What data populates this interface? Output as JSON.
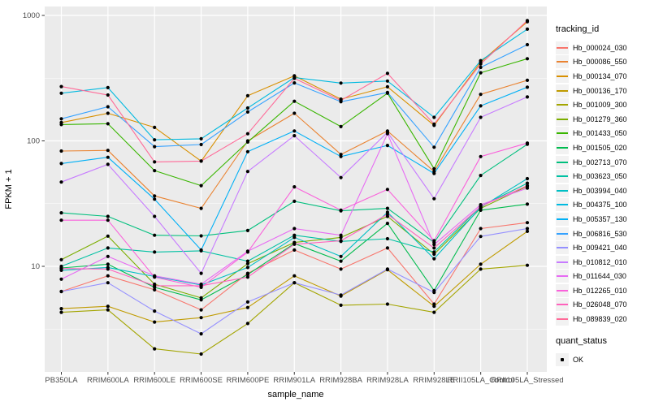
{
  "chart_data": {
    "type": "line",
    "title": "",
    "xlabel": "sample_name",
    "ylabel": "FPKM + 1",
    "y_scale": "log10",
    "ylim": [
      1.4,
      1200
    ],
    "y_ticks": [
      10,
      100,
      1000
    ],
    "y_tick_labels": [
      "10",
      "100",
      "1000"
    ],
    "y_minor_ticks": [
      3.162,
      31.62,
      316.2
    ],
    "grid": true,
    "legend_position": "right",
    "panel_bg": "#EBEBEB",
    "grid_color": "#FFFFFF",
    "axis_text_color": "#4D4D4D",
    "tick_mark_color": "#333333",
    "point_color": "#000000",
    "categories": [
      "PB350LA",
      "RRIM600LA",
      "RRIM600LE",
      "RRIM600SE",
      "RRIM600PE",
      "RRIM901LA",
      "RRIM928BA",
      "RRIM928LA",
      "RRIM928LE",
      "RRII105LA_Control",
      "RRII105LA_Stressed"
    ],
    "series": [
      {
        "name": "Hb_000024_030",
        "color": "#F8766D",
        "values": [
          6.3,
          8.4,
          6.5,
          4.5,
          8.8,
          13.5,
          9.5,
          14,
          5.0,
          20,
          22.3
        ]
      },
      {
        "name": "Hb_000086_550",
        "color": "#EA8331",
        "values": [
          83,
          84,
          36.4,
          29,
          100,
          166,
          78,
          120,
          57,
          235,
          304
        ]
      },
      {
        "name": "Hb_000134_070",
        "color": "#D89000",
        "values": [
          140,
          166,
          128,
          69,
          229,
          330,
          215,
          270,
          133,
          425,
          890
        ]
      },
      {
        "name": "Hb_000136_170",
        "color": "#C09B00",
        "values": [
          4.6,
          4.8,
          3.6,
          3.9,
          4.7,
          8.4,
          5.8,
          9.4,
          4.8,
          10.4,
          19
        ]
      },
      {
        "name": "Hb_001009_300",
        "color": "#A3A500",
        "values": [
          4.3,
          4.5,
          2.2,
          2.0,
          3.5,
          7.4,
          4.9,
          5.0,
          4.3,
          9.5,
          10.2
        ]
      },
      {
        "name": "Hb_001279_360",
        "color": "#7CAE00",
        "values": [
          11.3,
          17.4,
          7.2,
          5.6,
          10.5,
          15.5,
          17,
          25,
          12.5,
          29,
          43.5
        ]
      },
      {
        "name": "Hb_001433_050",
        "color": "#39B600",
        "values": [
          135,
          137,
          58,
          44,
          98,
          207,
          130,
          240,
          60,
          349,
          452
        ]
      },
      {
        "name": "Hb_001505_020",
        "color": "#00BB4E",
        "values": [
          9.7,
          10.4,
          6.8,
          5.4,
          8.6,
          15.2,
          11,
          22,
          6.4,
          28,
          31.3
        ]
      },
      {
        "name": "Hb_002713_070",
        "color": "#00BF7D",
        "values": [
          26.7,
          25,
          17.7,
          17.5,
          19.3,
          33,
          27.7,
          29,
          15.5,
          53,
          94
        ]
      },
      {
        "name": "Hb_003623_050",
        "color": "#00C1A3",
        "values": [
          10.0,
          14,
          13,
          13.3,
          11,
          17.7,
          15.8,
          16.6,
          13,
          30,
          46
        ]
      },
      {
        "name": "Hb_003994_040",
        "color": "#00BFC4",
        "values": [
          9.3,
          9.8,
          8.3,
          7.1,
          9.8,
          17,
          12,
          27,
          11.5,
          29.5,
          50
        ]
      },
      {
        "name": "Hb_004375_100",
        "color": "#00BAE0",
        "values": [
          240,
          266,
          102,
          104,
          183,
          320,
          289,
          300,
          154,
          436,
          777
        ]
      },
      {
        "name": "Hb_005357_130",
        "color": "#00B0F6",
        "values": [
          66,
          74,
          34.3,
          13.5,
          82,
          120,
          75,
          92,
          55,
          190,
          268
        ]
      },
      {
        "name": "Hb_006816_530",
        "color": "#35A2FF",
        "values": [
          150,
          187,
          90,
          93.5,
          170,
          290,
          205,
          243,
          89,
          385,
          585
        ]
      },
      {
        "name": "Hb_009421_040",
        "color": "#9590FF",
        "values": [
          6.3,
          7.4,
          4.4,
          2.9,
          5.2,
          7.4,
          5.9,
          9.5,
          6.2,
          17.3,
          20
        ]
      },
      {
        "name": "Hb_010812_010",
        "color": "#C77CFF",
        "values": [
          47,
          65,
          25,
          8.8,
          57,
          110,
          51,
          117,
          34.6,
          154,
          224
        ]
      },
      {
        "name": "Hb_011644_030",
        "color": "#E76BF3",
        "values": [
          7.9,
          12,
          8.4,
          7.2,
          13.2,
          20,
          17.7,
          114,
          14.9,
          31,
          42
        ]
      },
      {
        "name": "Hb_012265_010",
        "color": "#FA62DB",
        "values": [
          23.3,
          23.3,
          8.2,
          6.8,
          13,
          43,
          28,
          41,
          16,
          75,
          96
        ]
      },
      {
        "name": "Hb_026048_070",
        "color": "#FF62BC",
        "values": [
          9.6,
          9.5,
          7.0,
          7.0,
          8.2,
          15,
          16,
          26,
          14,
          30,
          44
        ]
      },
      {
        "name": "Hb_089839_020",
        "color": "#FF6A98",
        "values": [
          271,
          232,
          68,
          69,
          114,
          315,
          210,
          345,
          136,
          410,
          910
        ]
      }
    ],
    "legend": {
      "tracking_title": "tracking_id",
      "quant_title": "quant_status",
      "quant_items": [
        {
          "label": "OK"
        }
      ]
    }
  }
}
